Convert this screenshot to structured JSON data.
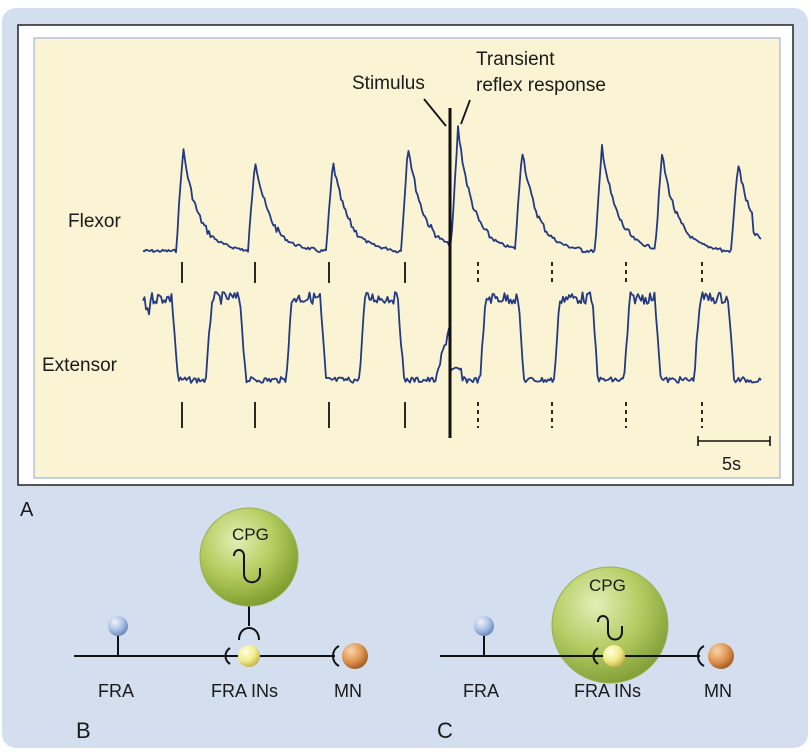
{
  "panel_a": {
    "panel_letter": "A",
    "label_stimulus": "Stimulus",
    "label_transient_line1": "Transient",
    "label_transient_line2": "reflex response",
    "label_flexor": "Flexor",
    "label_extensor": "Extensor",
    "scale_bar_label": "5s"
  },
  "panel_b": {
    "panel_letter": "B",
    "cpg_label": "CPG",
    "fra_label": "FRA",
    "fra_ins_label": "FRA INs",
    "mn_label": "MN"
  },
  "panel_c": {
    "panel_letter": "C",
    "cpg_label": "CPG",
    "fra_label": "FRA",
    "fra_ins_label": "FRA INs",
    "mn_label": "MN"
  },
  "colors": {
    "frame_background": "#d3deef",
    "recording_background": "#faf3d4",
    "trace_color": "#233a82",
    "cpg_green": "#a9c451",
    "afferent_blue": "#a9bfe4",
    "interneuron_yellow": "#f3ec8e",
    "motoneuron_orange": "#d98d47"
  }
}
